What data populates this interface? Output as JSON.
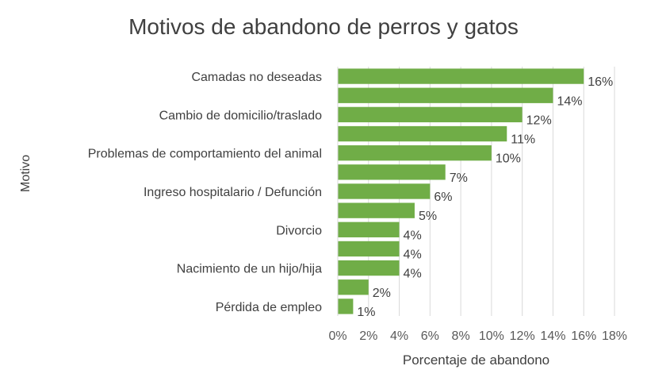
{
  "chart_data": {
    "type": "bar",
    "orientation": "horizontal",
    "title": "Motivos de abandono de perros y gatos",
    "xlabel": "Porcentaje de abandono",
    "ylabel": "Motivo",
    "bar_color": "#70AD47",
    "grid": true,
    "xlim": [
      0,
      18
    ],
    "xticks": [
      "0%",
      "2%",
      "4%",
      "6%",
      "8%",
      "10%",
      "12%",
      "14%",
      "16%",
      "18%"
    ],
    "categories": [
      "Camadas no deseadas",
      "",
      "Cambio de domicilio/traslado",
      "",
      "Problemas de comportamiento del animal",
      "",
      "Ingreso hospitalario / Defunción",
      "",
      "Divorcio",
      "",
      "Nacimiento de un hijo/hija",
      "",
      "Pérdida de empleo"
    ],
    "values": [
      16,
      14,
      12,
      11,
      10,
      7,
      6,
      5,
      4,
      4,
      4,
      2,
      1
    ],
    "data_labels": [
      "16%",
      "14%",
      "12%",
      "11%",
      "10%",
      "7%",
      "6%",
      "5%",
      "4%",
      "4%",
      "4%",
      "2%",
      "1%"
    ]
  }
}
